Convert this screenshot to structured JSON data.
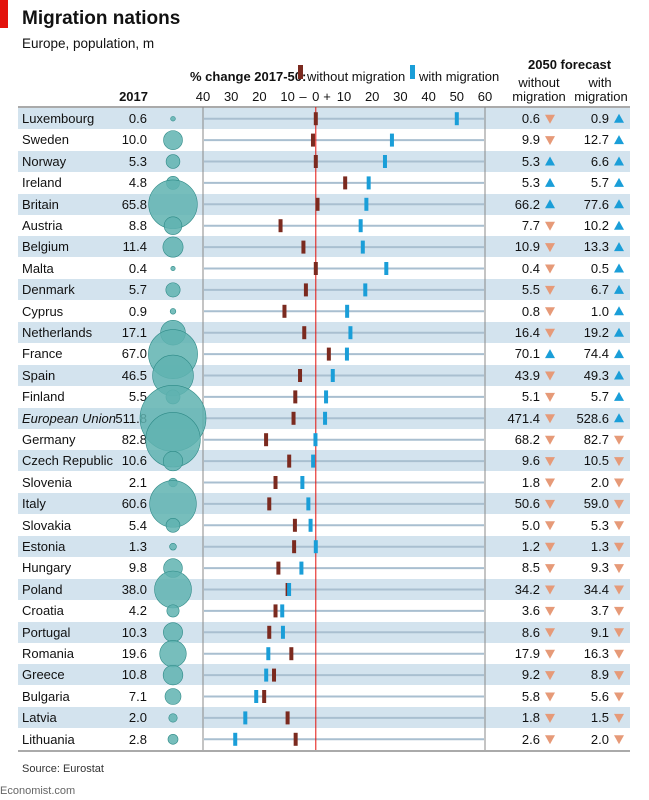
{
  "header": {
    "title": "Migration nations",
    "subtitle": "Europe, population, m",
    "col_2017": "2017",
    "pct_label": "% change 2017-50:",
    "legend_without": "without migration",
    "legend_with": "with migration",
    "forecast": "2050 forecast",
    "f_without_1": "without",
    "f_without_2": "migration",
    "f_with_1": "with",
    "f_with_2": "migration"
  },
  "footer": {
    "source": "Source: Eurostat",
    "credit": "Economist.com"
  },
  "colors": {
    "without": "#7b2a1f",
    "with": "#1a9ed8",
    "up": "#1a9ed8",
    "down": "#e69a78",
    "bubble": "#5fb3b0",
    "band": "#d3e3ee",
    "zero": "#e3120b"
  },
  "chart_data": {
    "type": "table",
    "ticks": [
      "40",
      "30",
      "20",
      "10",
      "–",
      "0",
      "+",
      "10",
      "20",
      "30",
      "40",
      "50",
      "60"
    ],
    "xlim": [
      -40,
      60
    ],
    "rows": [
      {
        "country": "Luxembourg",
        "pop2017": "0.6",
        "p": 0.6,
        "f_without": "0.6",
        "f_with": "0.9",
        "dir_without": "down",
        "dir_with": "up"
      },
      {
        "country": "Sweden",
        "pop2017": "10.0",
        "p": 10.0,
        "f_without": "9.9",
        "f_with": "12.7",
        "dir_without": "down",
        "dir_with": "up"
      },
      {
        "country": "Norway",
        "pop2017": "5.3",
        "p": 5.3,
        "f_without": "5.3",
        "f_with": "6.6",
        "dir_without": "up",
        "dir_with": "up"
      },
      {
        "country": "Ireland",
        "pop2017": "4.8",
        "p": 4.8,
        "f_without": "5.3",
        "f_with": "5.7",
        "dir_without": "up",
        "dir_with": "up"
      },
      {
        "country": "Britain",
        "pop2017": "65.8",
        "p": 65.8,
        "f_without": "66.2",
        "f_with": "77.6",
        "dir_without": "up",
        "dir_with": "up"
      },
      {
        "country": "Austria",
        "pop2017": "8.8",
        "p": 8.8,
        "f_without": "7.7",
        "f_with": "10.2",
        "dir_without": "down",
        "dir_with": "up"
      },
      {
        "country": "Belgium",
        "pop2017": "11.4",
        "p": 11.4,
        "f_without": "10.9",
        "f_with": "13.3",
        "dir_without": "down",
        "dir_with": "up"
      },
      {
        "country": "Malta",
        "pop2017": "0.4",
        "p": 0.4,
        "f_without": "0.4",
        "f_with": "0.5",
        "dir_without": "down",
        "dir_with": "up"
      },
      {
        "country": "Denmark",
        "pop2017": "5.7",
        "p": 5.7,
        "f_without": "5.5",
        "f_with": "6.7",
        "dir_without": "down",
        "dir_with": "up"
      },
      {
        "country": "Cyprus",
        "pop2017": "0.9",
        "p": 0.9,
        "f_without": "0.8",
        "f_with": "1.0",
        "dir_without": "down",
        "dir_with": "up"
      },
      {
        "country": "Netherlands",
        "pop2017": "17.1",
        "p": 17.1,
        "f_without": "16.4",
        "f_with": "19.2",
        "dir_without": "down",
        "dir_with": "up"
      },
      {
        "country": "France",
        "pop2017": "67.0",
        "p": 67.0,
        "f_without": "70.1",
        "f_with": "74.4",
        "dir_without": "up",
        "dir_with": "up"
      },
      {
        "country": "Spain",
        "pop2017": "46.5",
        "p": 46.5,
        "f_without": "43.9",
        "f_with": "49.3",
        "dir_without": "down",
        "dir_with": "up"
      },
      {
        "country": "Finland",
        "pop2017": "5.5",
        "p": 5.5,
        "f_without": "5.1",
        "f_with": "5.7",
        "dir_without": "down",
        "dir_with": "up"
      },
      {
        "country": "European Union",
        "pop2017": "511.8",
        "p": 511.8,
        "f_without": "471.4",
        "f_with": "528.6",
        "dir_without": "down",
        "dir_with": "up",
        "italic": true
      },
      {
        "country": "Germany",
        "pop2017": "82.8",
        "p": 82.8,
        "f_without": "68.2",
        "f_with": "82.7",
        "dir_without": "down",
        "dir_with": "down"
      },
      {
        "country": "Czech Republic",
        "pop2017": "10.6",
        "p": 10.6,
        "f_without": "9.6",
        "f_with": "10.5",
        "dir_without": "down",
        "dir_with": "down"
      },
      {
        "country": "Slovenia",
        "pop2017": "2.1",
        "p": 2.1,
        "f_without": "1.8",
        "f_with": "2.0",
        "dir_without": "down",
        "dir_with": "down"
      },
      {
        "country": "Italy",
        "pop2017": "60.6",
        "p": 60.6,
        "f_without": "50.6",
        "f_with": "59.0",
        "dir_without": "down",
        "dir_with": "down"
      },
      {
        "country": "Slovakia",
        "pop2017": "5.4",
        "p": 5.4,
        "f_without": "5.0",
        "f_with": "5.3",
        "dir_without": "down",
        "dir_with": "down"
      },
      {
        "country": "Estonia",
        "pop2017": "1.3",
        "p": 1.3,
        "f_without": "1.2",
        "f_with": "1.3",
        "dir_without": "down",
        "dir_with": "down"
      },
      {
        "country": "Hungary",
        "pop2017": "9.8",
        "p": 9.8,
        "f_without": "8.5",
        "f_with": "9.3",
        "dir_without": "down",
        "dir_with": "down"
      },
      {
        "country": "Poland",
        "pop2017": "38.0",
        "p": 38.0,
        "f_without": "34.2",
        "f_with": "34.4",
        "dir_without": "down",
        "dir_with": "down"
      },
      {
        "country": "Croatia",
        "pop2017": "4.2",
        "p": 4.2,
        "f_without": "3.6",
        "f_with": "3.7",
        "dir_without": "down",
        "dir_with": "down"
      },
      {
        "country": "Portugal",
        "pop2017": "10.3",
        "p": 10.3,
        "f_without": "8.6",
        "f_with": "9.1",
        "dir_without": "down",
        "dir_with": "down"
      },
      {
        "country": "Romania",
        "pop2017": "19.6",
        "p": 19.6,
        "f_without": "17.9",
        "f_with": "16.3",
        "dir_without": "down",
        "dir_with": "down"
      },
      {
        "country": "Greece",
        "pop2017": "10.8",
        "p": 10.8,
        "f_without": "9.2",
        "f_with": "8.9",
        "dir_without": "down",
        "dir_with": "down"
      },
      {
        "country": "Bulgaria",
        "pop2017": "7.1",
        "p": 7.1,
        "f_without": "5.8",
        "f_with": "5.6",
        "dir_without": "down",
        "dir_with": "down"
      },
      {
        "country": "Latvia",
        "pop2017": "2.0",
        "p": 2.0,
        "f_without": "1.8",
        "f_with": "1.5",
        "dir_without": "down",
        "dir_with": "down"
      },
      {
        "country": "Lithuania",
        "pop2017": "2.8",
        "p": 2.8,
        "f_without": "2.6",
        "f_with": "2.0",
        "dir_without": "down",
        "dir_with": "down"
      }
    ]
  }
}
